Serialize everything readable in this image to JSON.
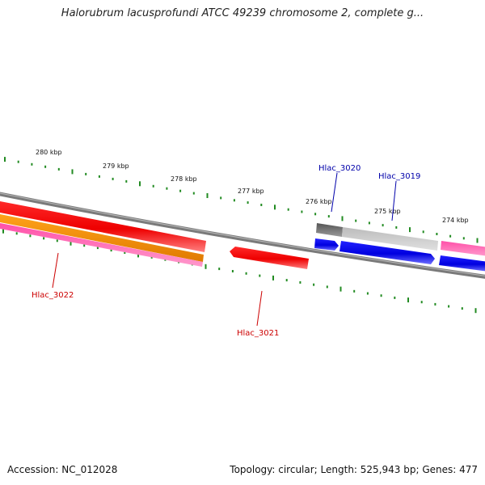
{
  "title": "Halorubrum lacusprofundi ATCC 49239 chromosome 2, complete g...",
  "footer": {
    "accession": "Accession: NC_012028",
    "summary": "Topology: circular; Length: 525,943 bp; Genes: 477"
  },
  "scale": {
    "unit": "kbp",
    "tick_labels": [
      "280 kbp",
      "279 kbp",
      "278 kbp",
      "277 kbp",
      "276 kbp",
      "275 kbp",
      "274 kbp"
    ]
  },
  "genes": [
    {
      "id": "Hlac_3022",
      "color": "#cc0000"
    },
    {
      "id": "Hlac_3021",
      "color": "#cc0000"
    },
    {
      "id": "Hlac_3020",
      "color": "#0000aa"
    },
    {
      "id": "Hlac_3019",
      "color": "#0000aa"
    }
  ],
  "colors": {
    "forward_cds": "#ff0000",
    "reverse_cds": "#0000ee",
    "orange_feature": "#ff9900",
    "pink_feature": "#ff3399",
    "gray_feature": "#aaaaaa",
    "backbone": "#777777",
    "ticks": "#228b22"
  }
}
